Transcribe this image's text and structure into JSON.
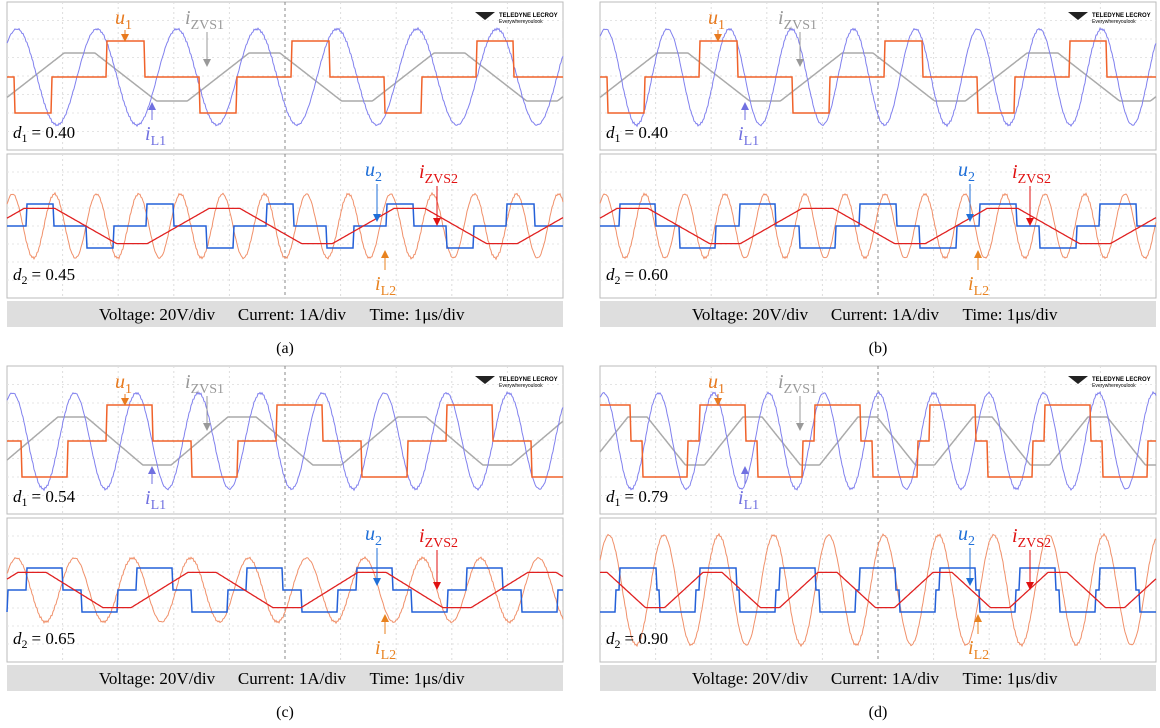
{
  "logo": {
    "brand": "TELEDYNE LECROY",
    "tagline": "Everywhereyoulook"
  },
  "signals": {
    "u1": {
      "main": "u",
      "sub": "1"
    },
    "izvs1": {
      "main": "i",
      "sub": "ZVS1"
    },
    "il1": {
      "main": "i",
      "sub": "L1"
    },
    "u2": {
      "main": "u",
      "sub": "2"
    },
    "izvs2": {
      "main": "i",
      "sub": "ZVS2"
    },
    "il2": {
      "main": "i",
      "sub": "L2"
    }
  },
  "footer": {
    "voltage": "Voltage: 20V/div",
    "current": "Current: 1A/div",
    "time": "Time: 1μs/div"
  },
  "panels": [
    {
      "caption": "(a)",
      "duty1": {
        "main": "d",
        "sub": "1",
        "value": "= 0.40"
      },
      "duty2": {
        "main": "d",
        "sub": "2",
        "value": "= 0.45"
      }
    },
    {
      "caption": "(b)",
      "duty1": {
        "main": "d",
        "sub": "1",
        "value": "= 0.40"
      },
      "duty2": {
        "main": "d",
        "sub": "2",
        "value": "= 0.60"
      }
    },
    {
      "caption": "(c)",
      "duty1": {
        "main": "d",
        "sub": "1",
        "value": "= 0.54"
      },
      "duty2": {
        "main": "d",
        "sub": "2",
        "value": "= 0.65"
      }
    },
    {
      "caption": "(d)",
      "duty1": {
        "main": "d",
        "sub": "1",
        "value": "= 0.79"
      },
      "duty2": {
        "main": "d",
        "sub": "2",
        "value": "= 0.90"
      }
    }
  ]
}
